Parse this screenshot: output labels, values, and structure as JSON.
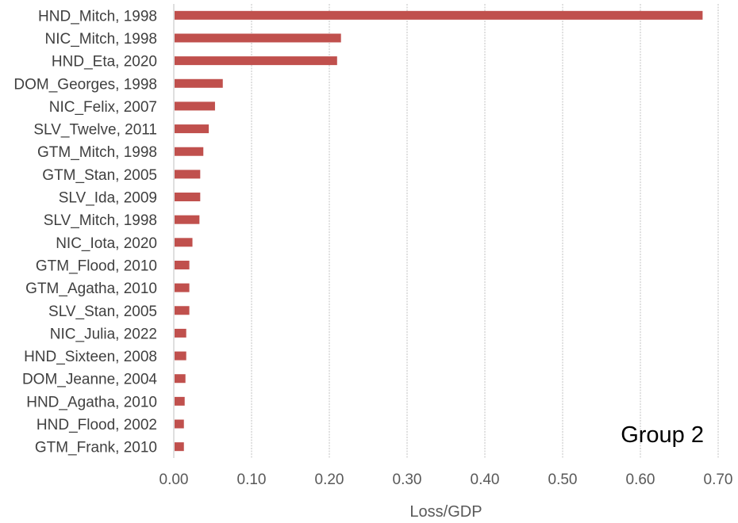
{
  "chart_data": {
    "type": "bar",
    "orientation": "horizontal",
    "categories": [
      "HND_Mitch, 1998",
      "NIC_Mitch, 1998",
      "HND_Eta, 2020",
      "DOM_Georges, 1998",
      "NIC_Felix, 2007",
      "SLV_Twelve, 2011",
      "GTM_Mitch, 1998",
      "GTM_Stan, 2005",
      "SLV_Ida, 2009",
      "SLV_Mitch, 1998",
      "NIC_Iota, 2020",
      "GTM_Flood, 2010",
      "GTM_Agatha, 2010",
      "SLV_Stan, 2005",
      "NIC_Julia, 2022",
      "HND_Sixteen, 2008",
      "DOM_Jeanne, 2004",
      "HND_Agatha, 2010",
      "HND_Flood, 2002",
      "GTM_Frank, 2010"
    ],
    "values": [
      0.68,
      0.215,
      0.21,
      0.063,
      0.053,
      0.045,
      0.038,
      0.034,
      0.034,
      0.033,
      0.024,
      0.02,
      0.02,
      0.02,
      0.016,
      0.016,
      0.015,
      0.014,
      0.013,
      0.013
    ],
    "xlim": [
      0,
      0.7
    ],
    "xticks": [
      "0.00",
      "0.10",
      "0.20",
      "0.30",
      "0.40",
      "0.50",
      "0.60",
      "0.70"
    ],
    "xlabel": "Loss/GDP",
    "ylabel": "",
    "title": "",
    "annotation": "Group 2",
    "grid": "vertical dashed",
    "bar_color": "#c0504d",
    "grid_color": "#d0d0d0"
  }
}
